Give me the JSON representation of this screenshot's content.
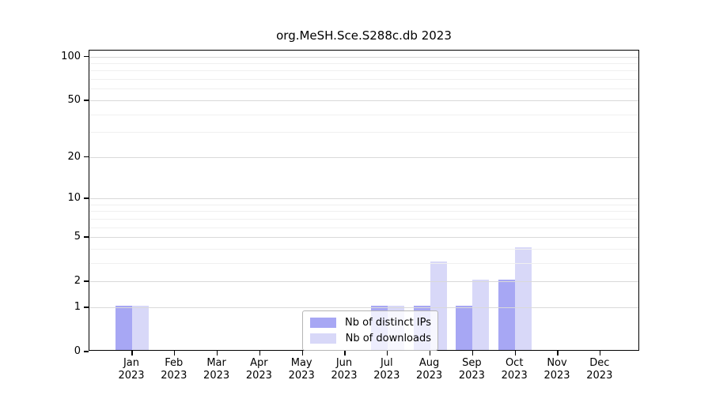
{
  "chart_data": {
    "type": "bar",
    "title": "org.MeSH.Sce.S288c.db 2023",
    "categories": [
      "Jan",
      "Feb",
      "Mar",
      "Apr",
      "May",
      "Jun",
      "Jul",
      "Aug",
      "Sep",
      "Oct",
      "Nov",
      "Dec"
    ],
    "category_year": "2023",
    "series": [
      {
        "name": "Nb of distinct IPs",
        "color": "#a7a7f4",
        "values": [
          1,
          0,
          0,
          0,
          0,
          0,
          1,
          1,
          1,
          2,
          0,
          0
        ]
      },
      {
        "name": "Nb of downloads",
        "color": "#d8d8f8",
        "values": [
          1,
          0,
          0,
          0,
          0,
          0,
          1,
          3,
          2,
          4,
          0,
          0
        ]
      }
    ],
    "y_axis": {
      "scale": "log1p",
      "tick_values": [
        0,
        1,
        2,
        5,
        10,
        20,
        50,
        100
      ],
      "tick_labels": [
        "0",
        "1",
        "2",
        "5",
        "10",
        "20",
        "50",
        "100"
      ],
      "major_gridlines": [
        1,
        2,
        5,
        10,
        20,
        50,
        100
      ],
      "minor_gridlines": [
        3,
        4,
        6,
        7,
        8,
        9,
        30,
        40,
        60,
        70,
        80,
        90
      ],
      "ylim": [
        0,
        110
      ]
    },
    "legend": {
      "position": "lower-center",
      "entries": [
        "Nb of distinct IPs",
        "Nb of downloads"
      ]
    },
    "colors": {
      "grid_major": "#d9d9d9",
      "grid_minor": "#f0f0f0",
      "axis": "#000000",
      "background": "#ffffff"
    }
  }
}
